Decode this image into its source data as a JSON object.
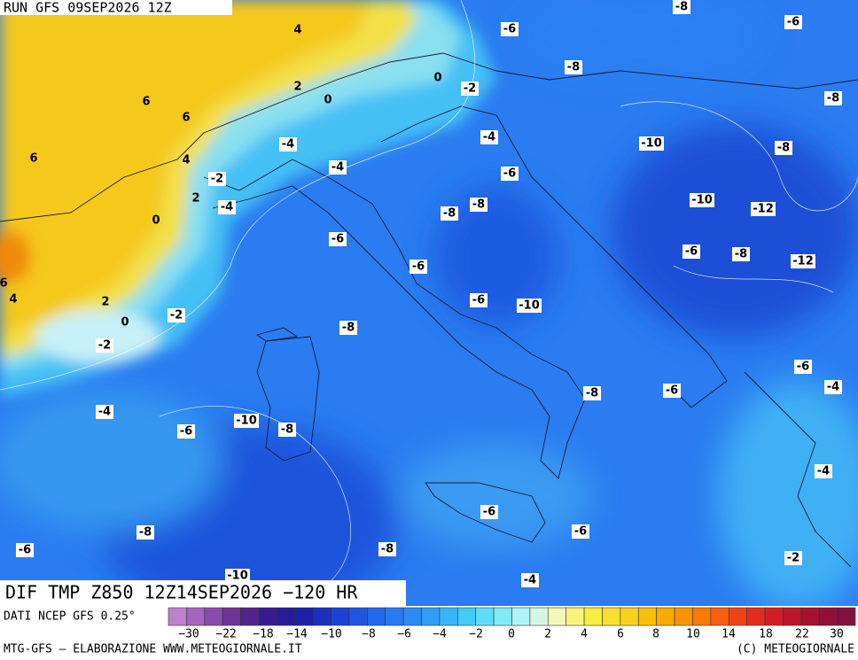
{
  "header": {
    "title": "RUN GFS 09SEP2026 12Z"
  },
  "map": {
    "contour_labels": [
      "-8",
      "-6",
      "-6",
      "4",
      "-8",
      "0",
      "-2",
      "2",
      "0",
      "-8",
      "6",
      "6",
      "-4",
      "-10",
      "-8",
      "-4",
      "6",
      "4",
      "-4",
      "-6",
      "-2",
      "2",
      "-4",
      "-10",
      "-8",
      "-8",
      "-12",
      "0",
      "-6",
      "-6",
      "-8",
      "-12",
      "-6",
      "6",
      "4",
      "2",
      "-6",
      "-10",
      "-2",
      "0",
      "-8",
      "-2",
      "-6",
      "-4",
      "-8",
      "-6",
      "-4",
      "-10",
      "-8",
      "-6",
      "-4",
      "-6",
      "-6",
      "-8",
      "-8",
      "-6",
      "-2",
      "-10",
      "-4"
    ]
  },
  "footer": {
    "title": "DIF TMP Z850 12Z14SEP2026 −120 HR",
    "source": "DATI NCEP GFS 0.25°",
    "credit_left": "MTG-GFS — ELABORAZIONE WWW.METEOGIORNALE.IT",
    "credit_right": "(C) METEOGIORNALE"
  },
  "colorbar": {
    "labels": [
      "−30",
      "−22",
      "−18",
      "−14",
      "−10",
      "−8",
      "−6",
      "−4",
      "−2",
      "0",
      "2",
      "4",
      "6",
      "8",
      "10",
      "14",
      "18",
      "22",
      "30"
    ]
  }
}
